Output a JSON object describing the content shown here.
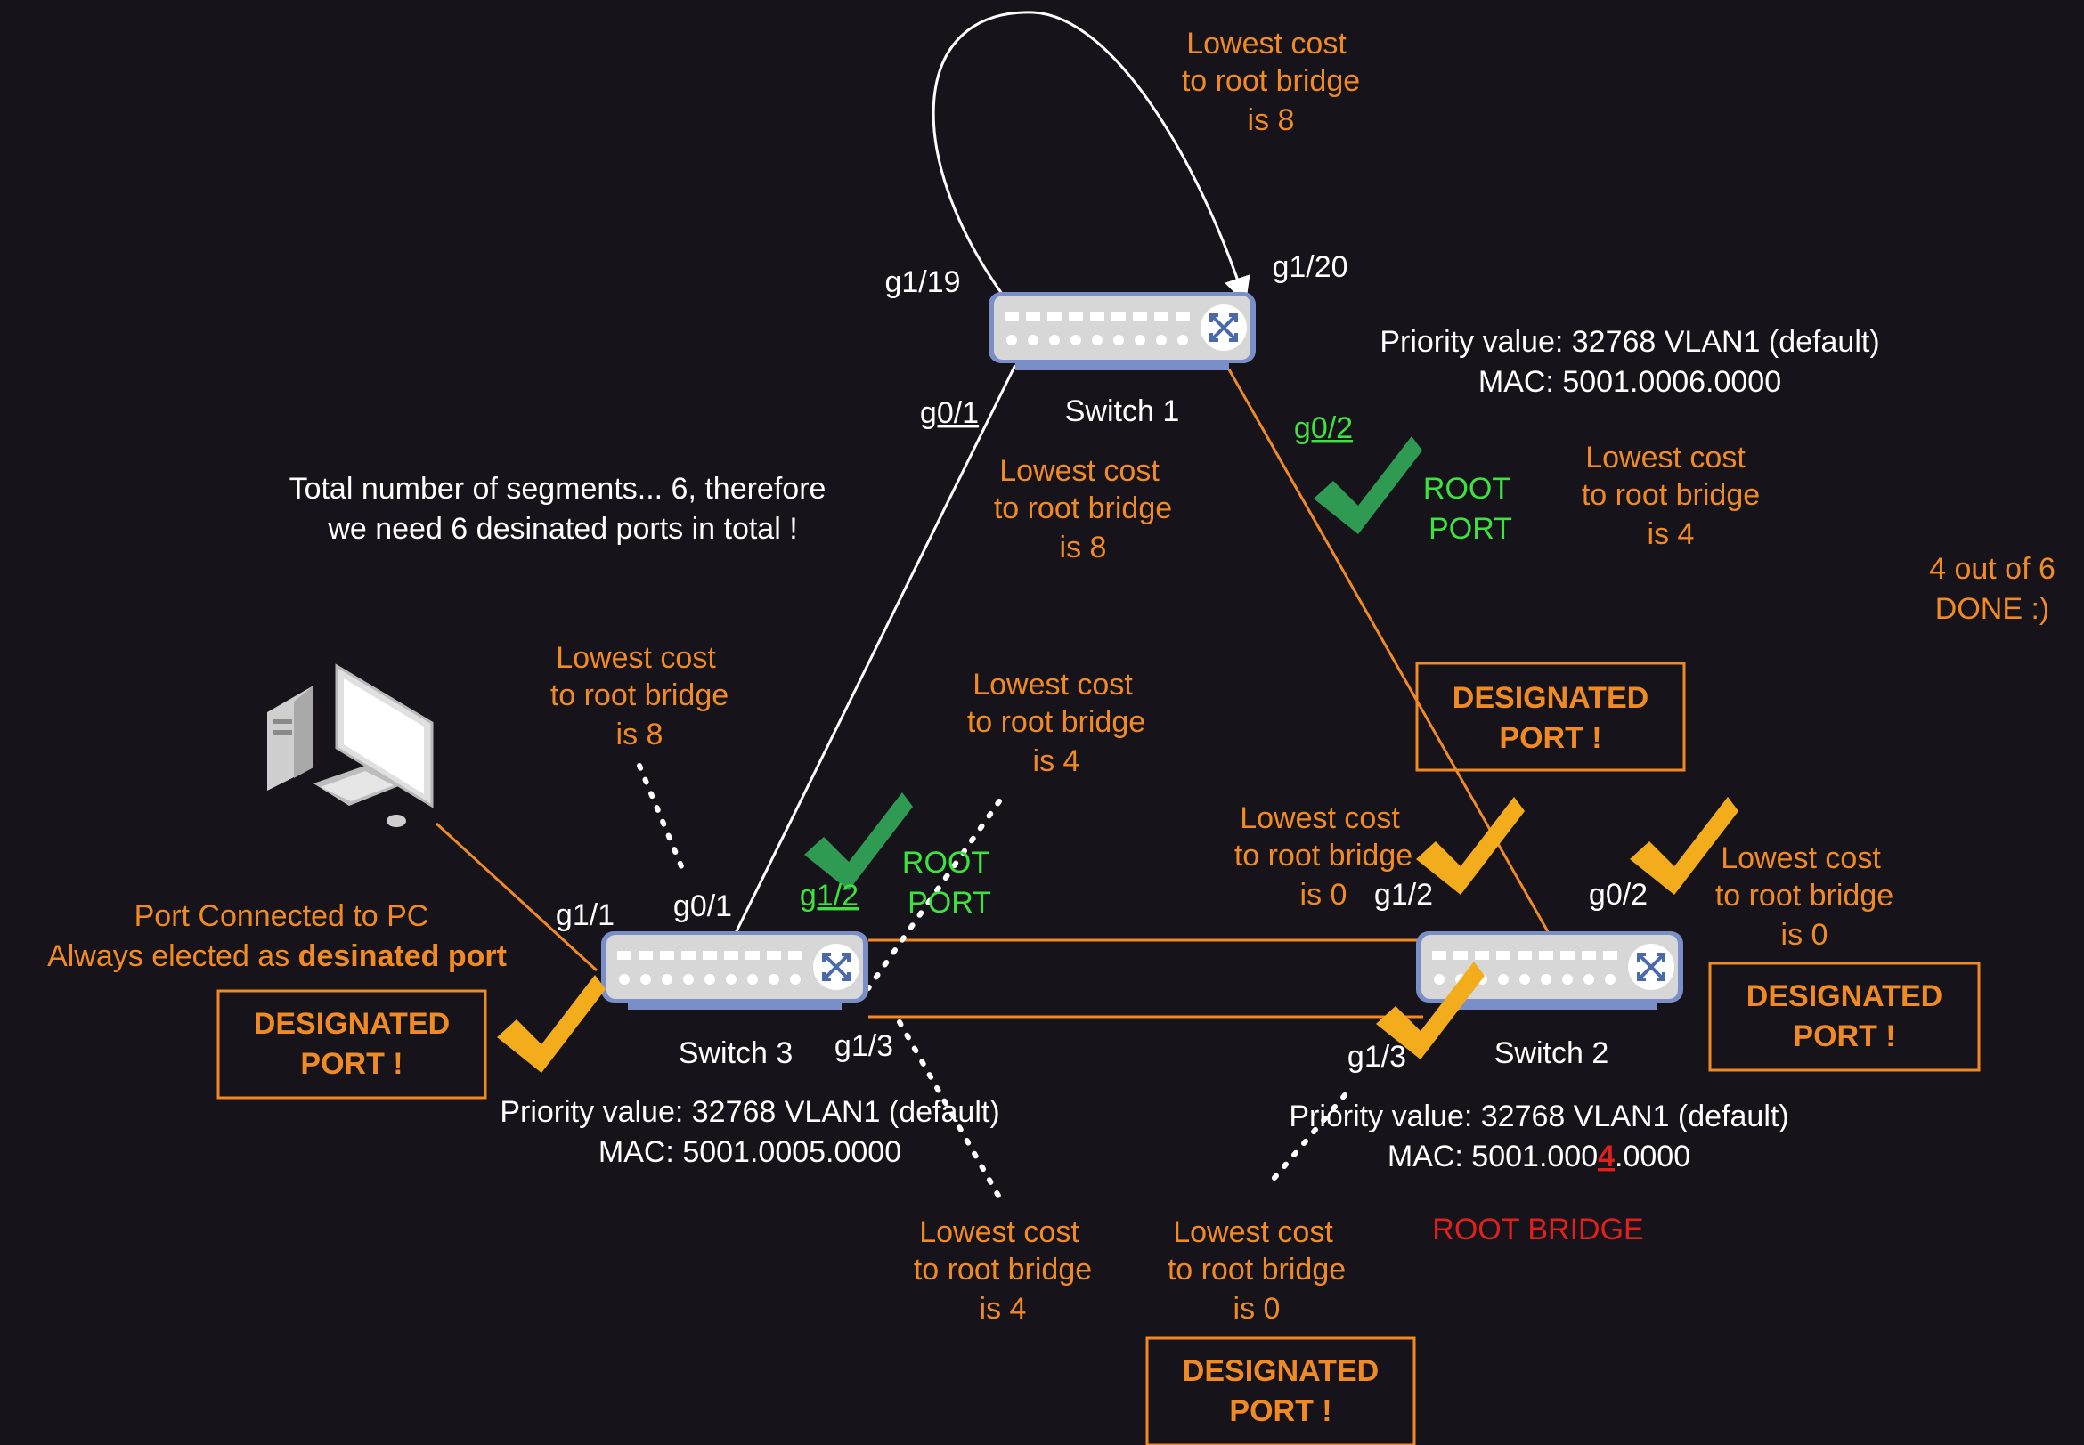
{
  "colors": {
    "background": "#16131a",
    "orange": "#f08a24",
    "green": "#3ee23e",
    "check_green": "#2e9a52",
    "check_yellow": "#f2ac1c",
    "red": "#e0201c",
    "white": "#ffffff"
  },
  "icons": {
    "switch": "network-switch-icon",
    "pc": "desktop-computer-icon",
    "check": "checkmark-icon",
    "loop": "loop-arrow-icon"
  },
  "cost": {
    "l1": "Lowest cost",
    "l2": "to root bridge",
    "is8": "is 8",
    "is4": "is 4",
    "is0": "is 0"
  },
  "designated": {
    "l1": "DESIGNATED",
    "l2": "PORT !"
  },
  "root_port": {
    "l1": "ROOT",
    "l2": "PORT"
  },
  "info": {
    "l1": "Total number of segments... 6, therefore",
    "l2": "we need 6 desinated ports in total !"
  },
  "progress": {
    "l1": "4 out of 6",
    "l2": "DONE :)"
  },
  "pc_port": {
    "l1": "Port Connected to PC",
    "l2_prefix": "Always elected as ",
    "l2_bold": "desinated port"
  },
  "switch1": {
    "name": "Switch 1",
    "priority": "Priority value: 32768 VLAN1 (default)",
    "mac": "MAC: 5001.0006.0000",
    "ports": {
      "g1_19": "g1/19",
      "g1_20": "g1/20",
      "g0_1": "g0/1",
      "g0_2": "g0/2"
    }
  },
  "switch2": {
    "name": "Switch 2",
    "priority": "Priority value: 32768 VLAN1 (default)",
    "mac_prefix": "MAC: 5001.000",
    "mac_highlight": "4",
    "mac_suffix": ".0000",
    "role": "ROOT BRIDGE",
    "ports": {
      "g1_2": "g1/2",
      "g0_2": "g0/2",
      "g1_3": "g1/3"
    }
  },
  "switch3": {
    "name": "Switch 3",
    "priority": "Priority value: 32768 VLAN1 (default)",
    "mac": "MAC: 5001.0005.0000",
    "ports": {
      "g1_1": "g1/1",
      "g0_1": "g0/1",
      "g1_2": "g1/2",
      "g1_3": "g1/3"
    }
  }
}
